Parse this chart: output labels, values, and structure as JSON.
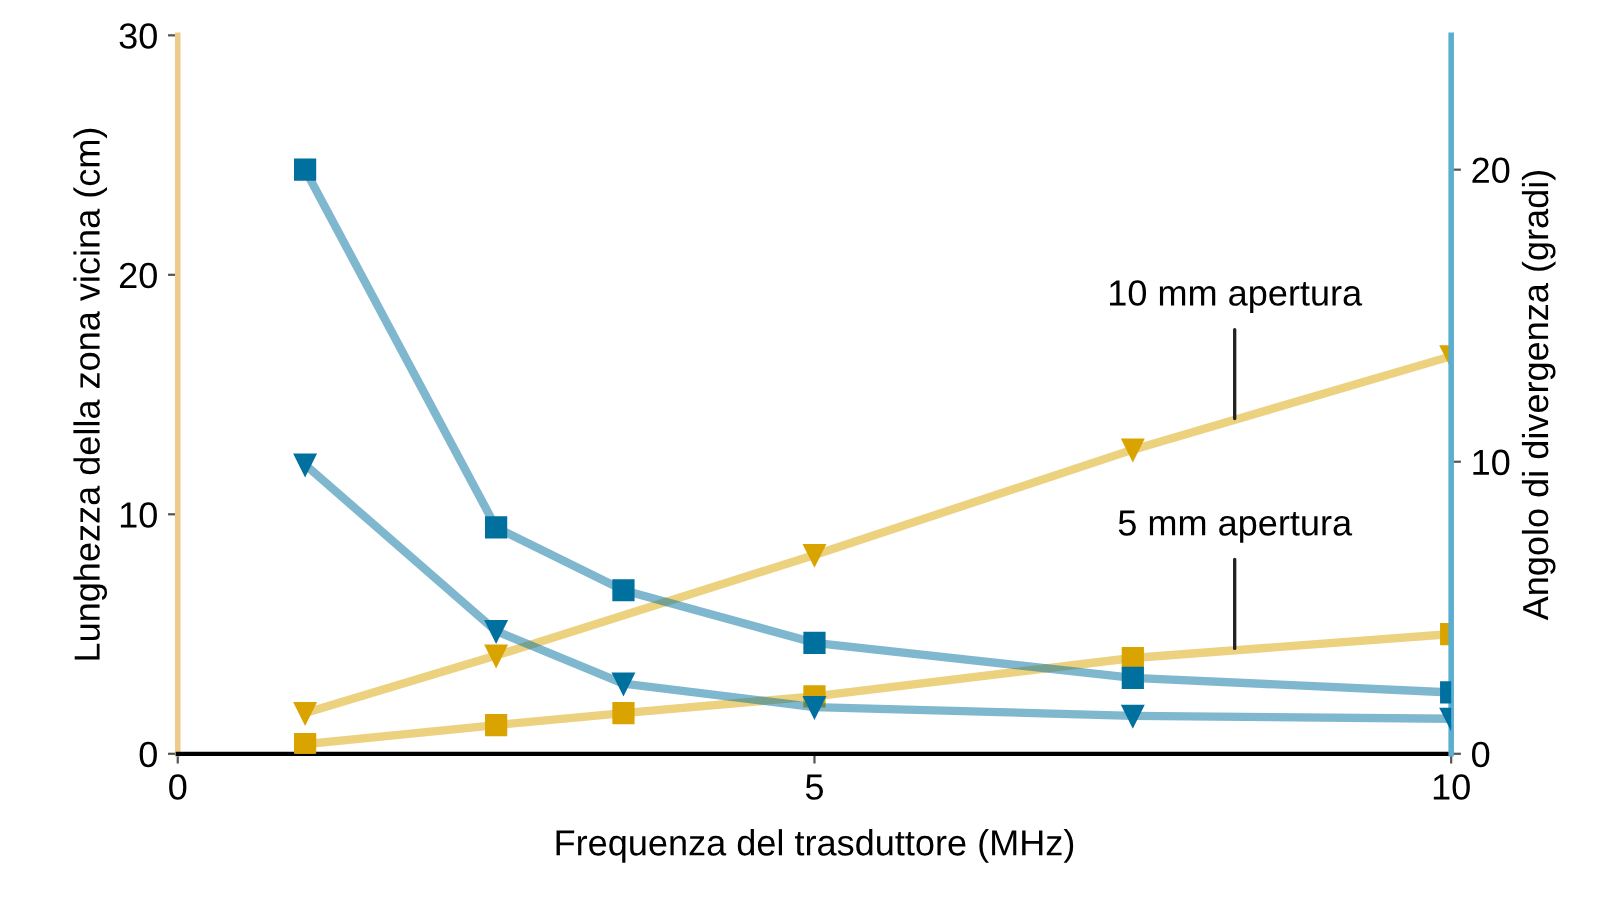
{
  "chart_data": {
    "type": "line",
    "xlabel": "Frequenza del trasduttore (MHz)",
    "ylabel": "Lunghezza della zona vicina (cm)",
    "y2label": "Angolo di divergenza (gradi)",
    "x": [
      1,
      2.5,
      3.5,
      5,
      7.5,
      10
    ],
    "xlim": [
      0,
      10
    ],
    "xticks": [
      0,
      5,
      10
    ],
    "ylim": [
      0,
      30
    ],
    "yticks": [
      0,
      10,
      20,
      30
    ],
    "y2lim": [
      0,
      24.6
    ],
    "y2ticks": [
      0,
      10,
      20
    ],
    "grid": false,
    "legend": false,
    "line_style": "solid",
    "series": [
      {
        "color": "#d9a300",
        "marker": "triangle",
        "x": [
          1,
          2.5,
          5,
          7.5,
          10
        ],
        "values": [
          1.7,
          4.1,
          8.3,
          12.7,
          16.6
        ]
      },
      {
        "color": "#d9a300",
        "marker": "square",
        "values": [
          0.4,
          1.2,
          1.7,
          2.4,
          4.0,
          5.0
        ]
      },
      {
        "color": "#00709f",
        "marker": "square",
        "axis": "y2",
        "values": [
          20.0,
          7.75,
          5.6,
          3.8,
          2.6,
          2.1
        ]
      },
      {
        "color": "#00709f",
        "marker": "triangle",
        "axis": "y2",
        "values": [
          9.9,
          4.2,
          2.4,
          1.6,
          1.3,
          1.2
        ]
      }
    ],
    "annotations": [
      {
        "text": "10 mm apertura",
        "x": 8.3,
        "y": 14.0
      },
      {
        "text": "5 mm apertura",
        "x": 8.3,
        "y": 4.4
      }
    ]
  }
}
